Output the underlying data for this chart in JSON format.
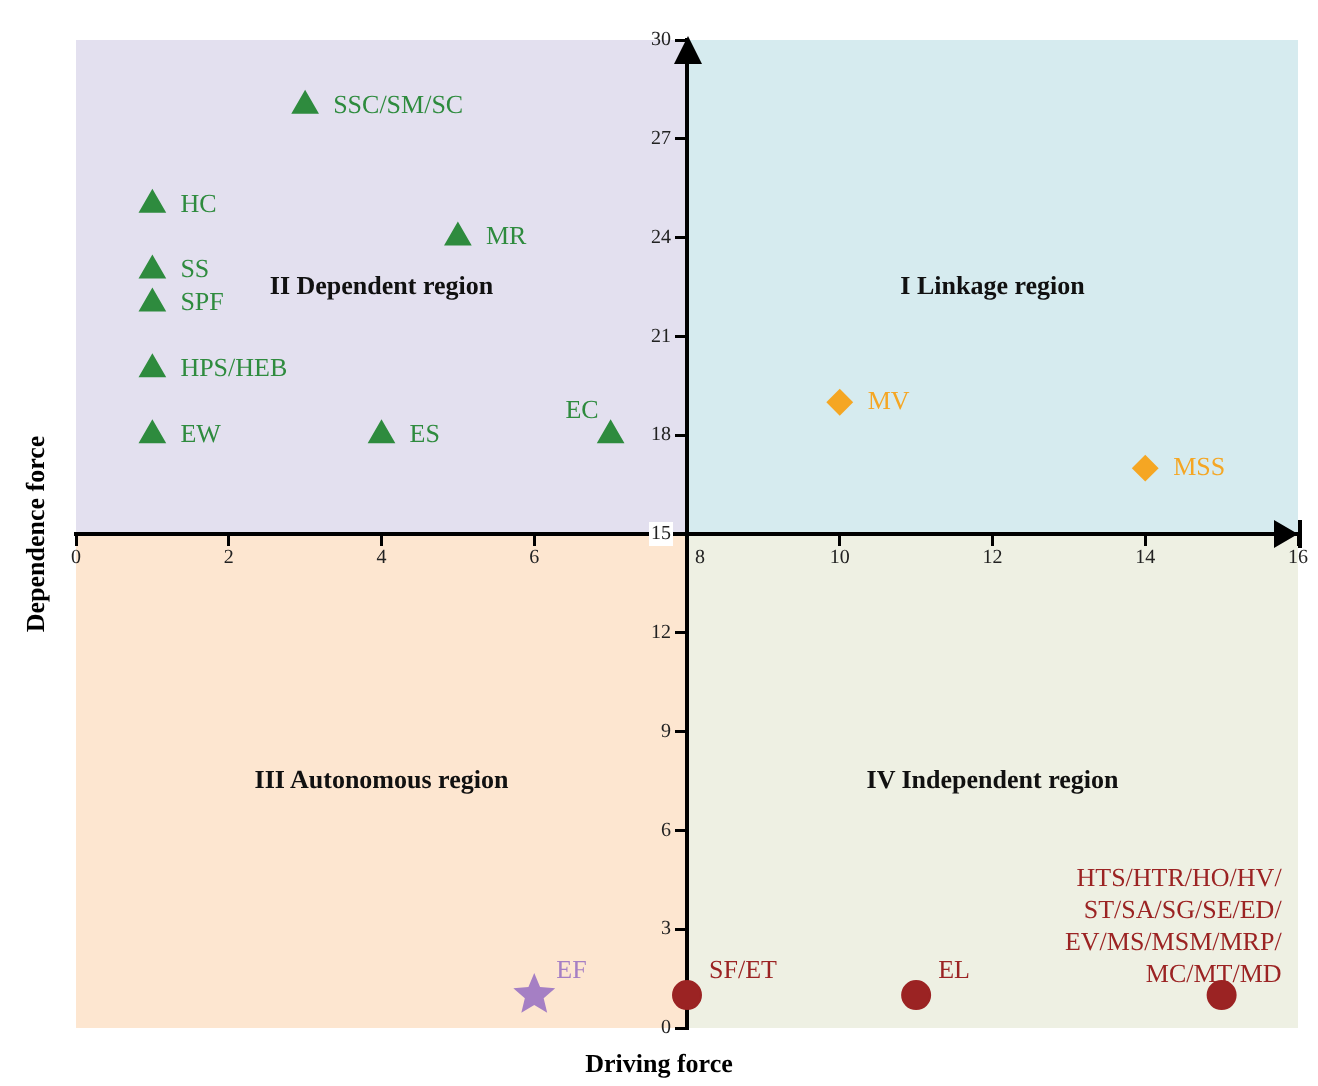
{
  "chart_data": {
    "type": "scatter",
    "xlabel": "Driving force",
    "ylabel": "Dependence force",
    "xlim": [
      0,
      16
    ],
    "xticks": [
      0,
      2,
      4,
      6,
      8,
      10,
      12,
      14,
      16
    ],
    "ylim": [
      0,
      30
    ],
    "yticks": [
      0,
      3,
      6,
      9,
      12,
      15,
      18,
      21,
      24,
      27,
      30
    ],
    "grid": false,
    "legend": false,
    "series": [
      {
        "color": "#2e8b3e",
        "marker": "triangle",
        "x": [
          3,
          1,
          5,
          1,
          1,
          1,
          1,
          4,
          7
        ],
        "values": [
          28,
          25,
          24,
          23,
          22,
          20,
          18,
          18,
          18
        ]
      },
      {
        "color": "#f5a623",
        "marker": "diamond",
        "x": [
          10,
          14
        ],
        "values": [
          19,
          17
        ]
      },
      {
        "color": "#a57fc4",
        "marker": "star",
        "x": [
          6
        ],
        "values": [
          1
        ]
      },
      {
        "color": "#9b2323",
        "marker": "circle",
        "x": [
          8,
          11,
          15
        ],
        "values": [
          1,
          1,
          1
        ]
      }
    ],
    "annotations": [
      "I Linkage region",
      "II Dependent region",
      "III Autonomous region",
      "IV Independent region",
      {
        "text": "SSC/SM/SC",
        "x": 3,
        "y": 28
      },
      {
        "text": "HC",
        "x": 1,
        "y": 25
      },
      {
        "text": "MR",
        "x": 5,
        "y": 24
      },
      {
        "text": "SS",
        "x": 1,
        "y": 23
      },
      {
        "text": "SPF",
        "x": 1,
        "y": 22
      },
      {
        "text": "HPS/HEB",
        "x": 1,
        "y": 20
      },
      {
        "text": "EW",
        "x": 1,
        "y": 18
      },
      {
        "text": "ES",
        "x": 4,
        "y": 18
      },
      {
        "text": "EC",
        "x": 7,
        "y": 18
      },
      {
        "text": "MV",
        "x": 10,
        "y": 19
      },
      {
        "text": "MSS",
        "x": 14,
        "y": 17
      },
      {
        "text": "EF",
        "x": 6,
        "y": 1
      },
      {
        "text": "SF/ET",
        "x": 8,
        "y": 1
      },
      {
        "text": "EL",
        "x": 11,
        "y": 1
      },
      {
        "text": "HTS/HTR/HO/HV/\nST/SA/SG/SE/ED/\nEV/MS/MSM/MRP/\nMC/MT/MD",
        "x": 15,
        "y": 1
      }
    ]
  }
}
